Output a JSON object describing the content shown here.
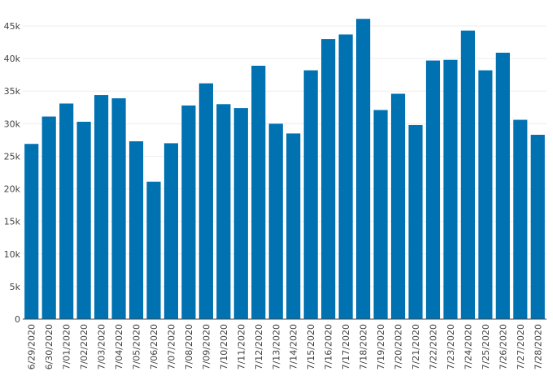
{
  "chart_data": {
    "type": "bar",
    "categories": [
      "6/29/2020",
      "6/30/2020",
      "7/01/2020",
      "7/02/2020",
      "7/03/2020",
      "7/04/2020",
      "7/05/2020",
      "7/06/2020",
      "7/07/2020",
      "7/08/2020",
      "7/09/2020",
      "7/10/2020",
      "7/11/2020",
      "7/12/2020",
      "7/13/2020",
      "7/14/2020",
      "7/15/2020",
      "7/16/2020",
      "7/17/2020",
      "7/18/2020",
      "7/19/2020",
      "7/20/2020",
      "7/21/2020",
      "7/22/2020",
      "7/23/2020",
      "7/24/2020",
      "7/25/2020",
      "7/26/2020",
      "7/27/2020",
      "7/28/2020"
    ],
    "values": [
      26900,
      31100,
      33100,
      30300,
      34400,
      33900,
      27300,
      21100,
      27000,
      32800,
      36200,
      33000,
      32400,
      38900,
      30000,
      28500,
      38200,
      43000,
      43700,
      46100,
      32100,
      34600,
      29800,
      39700,
      39800,
      44300,
      38200,
      40900,
      30600,
      28300
    ],
    "yticks": [
      0,
      5000,
      10000,
      15000,
      20000,
      25000,
      30000,
      35000,
      40000,
      45000
    ],
    "ytick_labels": [
      "0",
      "5k",
      "10k",
      "15k",
      "20k",
      "25k",
      "30k",
      "35k",
      "40k",
      "45k"
    ],
    "ylim": [
      0,
      46500
    ],
    "title": "",
    "xlabel": "",
    "ylabel": "",
    "grid": true,
    "bar_color": "#0072b2"
  }
}
